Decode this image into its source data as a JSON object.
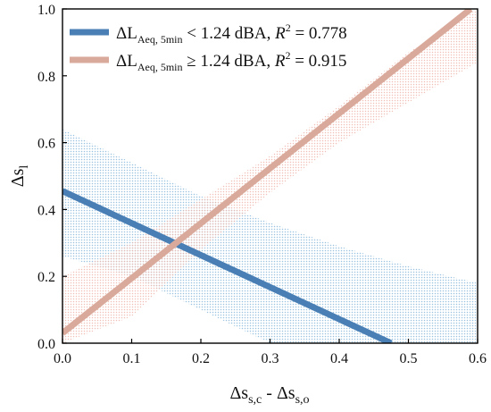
{
  "chart_data": {
    "type": "line",
    "xlabel": {
      "base": "Δs",
      "sub1": "s,c",
      "sep": " - ",
      "base2": "Δs",
      "sub2": "s,o"
    },
    "ylabel": {
      "base": "Δs",
      "sub": "l"
    },
    "xlim": [
      0.0,
      0.6
    ],
    "ylim": [
      0.0,
      1.0
    ],
    "x_ticks": [
      "0.0",
      "0.1",
      "0.2",
      "0.3",
      "0.4",
      "0.5",
      "0.6"
    ],
    "y_ticks": [
      "0.0",
      "0.2",
      "0.4",
      "0.6",
      "0.8",
      "1.0"
    ],
    "grid": false,
    "legend_position": "top-left",
    "series": [
      {
        "legend": {
          "prefix": "ΔL",
          "sub": "Aeq, 5min",
          "mid": " < 1.24 dBA, ",
          "r": "R",
          "sup": "2",
          "tail": " = 0.778"
        },
        "color": "#4a7fb5",
        "band_color": "#a9cde6",
        "x": [
          0.0,
          0.475
        ],
        "y": [
          0.455,
          0.0
        ],
        "band": {
          "x": [
            0.0,
            0.1,
            0.2,
            0.3,
            0.4,
            0.5,
            0.6
          ],
          "upper": [
            0.64,
            0.54,
            0.44,
            0.36,
            0.29,
            0.23,
            0.18
          ],
          "lower": [
            0.26,
            0.2,
            0.1,
            0.0,
            0.0,
            0.0,
            0.0
          ]
        }
      },
      {
        "legend": {
          "prefix": "ΔL",
          "sub": "Aeq, 5min",
          "mid": " ≥ 1.24 dBA, ",
          "r": "R",
          "sup": "2",
          "tail": " = 0.915"
        },
        "color": "#d9aa9b",
        "band_color": "#f2c6bd",
        "x": [
          0.0,
          0.59
        ],
        "y": [
          0.03,
          1.0
        ],
        "band": {
          "x": [
            0.0,
            0.1,
            0.2,
            0.3,
            0.4,
            0.5,
            0.6
          ],
          "upper": [
            0.2,
            0.3,
            0.43,
            0.56,
            0.71,
            0.87,
            1.0
          ],
          "lower": [
            0.0,
            0.08,
            0.28,
            0.45,
            0.6,
            0.72,
            0.84
          ]
        }
      }
    ]
  }
}
